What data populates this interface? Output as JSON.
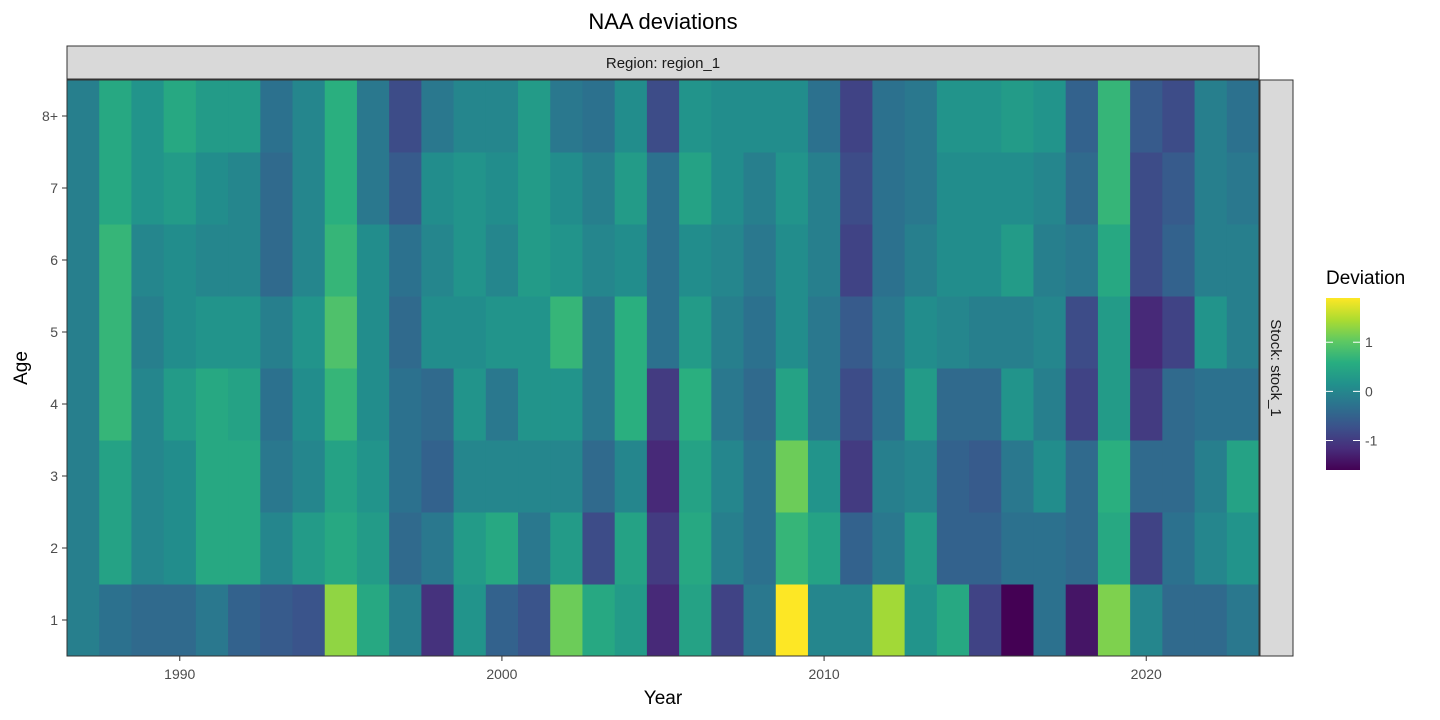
{
  "chart_data": {
    "type": "heatmap",
    "title": "NAA deviations",
    "xlabel": "Year",
    "ylabel": "Age",
    "facet_col_label": "Region: region_1",
    "facet_row_label": "Stock: stock_1",
    "x_start": 1987,
    "x_end": 2023,
    "xlim": [
      1986.5,
      2023.5
    ],
    "x_ticks": [
      1990,
      2000,
      2010,
      2020
    ],
    "x_tick_labels": [
      "1990",
      "2000",
      "2010",
      "2020"
    ],
    "ages": [
      "1",
      "2",
      "3",
      "4",
      "5",
      "6",
      "7",
      "8+"
    ],
    "legend": {
      "title": "Deviation",
      "breaks": [
        1,
        0,
        -1
      ],
      "labels": [
        "1",
        "0",
        "-1"
      ],
      "min": -1.6,
      "max": 1.9
    },
    "grid": false,
    "values": [
      [
        -0.1,
        -0.3,
        -0.4,
        -0.4,
        -0.2,
        -0.5,
        -0.6,
        -0.7,
        1.3,
        0.5,
        -0.1,
        -1.1,
        0.2,
        -0.5,
        -0.7,
        1.1,
        0.5,
        0.3,
        -1.2,
        0.4,
        -0.9,
        -0.2,
        1.9,
        0.0,
        0.0,
        1.4,
        0.2,
        0.5,
        -0.9,
        -1.6,
        -0.3,
        -1.4,
        1.2,
        0.0,
        -0.4,
        -0.4,
        -0.2
      ],
      [
        -0.1,
        0.4,
        0.0,
        0.1,
        0.5,
        0.5,
        0.0,
        0.3,
        0.5,
        0.3,
        -0.4,
        -0.2,
        0.3,
        0.5,
        -0.2,
        0.3,
        -0.8,
        0.4,
        -1.0,
        0.5,
        -0.1,
        -0.3,
        0.7,
        0.4,
        -0.5,
        -0.2,
        0.3,
        -0.5,
        -0.5,
        -0.3,
        -0.3,
        -0.4,
        0.5,
        -0.9,
        -0.3,
        0.0,
        0.2
      ],
      [
        -0.1,
        0.4,
        0.0,
        0.1,
        0.5,
        0.5,
        -0.2,
        0.0,
        0.4,
        0.2,
        -0.3,
        -0.5,
        0.0,
        0.0,
        0.0,
        0.0,
        -0.4,
        0.0,
        -1.2,
        0.4,
        0.0,
        -0.3,
        1.1,
        0.2,
        -1.0,
        -0.1,
        0.0,
        -0.5,
        -0.6,
        -0.2,
        0.1,
        -0.4,
        0.6,
        -0.4,
        -0.4,
        -0.1,
        0.4
      ],
      [
        -0.1,
        0.7,
        0.0,
        0.3,
        0.5,
        0.4,
        -0.3,
        0.1,
        0.7,
        0.1,
        -0.3,
        -0.4,
        0.2,
        -0.2,
        0.2,
        0.2,
        -0.2,
        0.6,
        -1.0,
        0.6,
        -0.2,
        -0.4,
        0.4,
        -0.2,
        -0.8,
        -0.3,
        0.3,
        -0.4,
        -0.4,
        0.2,
        -0.1,
        -0.9,
        0.3,
        -1.0,
        -0.4,
        -0.3,
        -0.3
      ],
      [
        -0.1,
        0.7,
        -0.1,
        0.1,
        0.2,
        0.2,
        -0.1,
        0.2,
        0.9,
        0.1,
        -0.4,
        0.1,
        0.1,
        0.2,
        0.2,
        0.7,
        -0.2,
        0.6,
        -0.3,
        0.3,
        -0.1,
        -0.3,
        0.1,
        -0.2,
        -0.6,
        -0.2,
        0.1,
        0.0,
        -0.1,
        -0.1,
        0.0,
        -0.8,
        0.3,
        -1.2,
        -0.9,
        0.2,
        -0.1
      ],
      [
        -0.1,
        0.7,
        0.0,
        0.1,
        0.0,
        0.0,
        -0.4,
        0.0,
        0.7,
        0.1,
        -0.3,
        0.0,
        0.2,
        0.0,
        0.3,
        0.2,
        0.0,
        0.1,
        -0.3,
        0.1,
        0.0,
        -0.2,
        0.1,
        -0.1,
        -0.9,
        -0.3,
        -0.1,
        0.1,
        0.1,
        0.3,
        -0.1,
        -0.2,
        0.5,
        -0.8,
        -0.5,
        -0.1,
        -0.1
      ],
      [
        -0.1,
        0.5,
        0.2,
        0.3,
        0.1,
        0.0,
        -0.4,
        0.0,
        0.6,
        -0.2,
        -0.6,
        0.1,
        0.2,
        0.1,
        0.3,
        0.1,
        -0.1,
        0.3,
        -0.3,
        0.4,
        0.1,
        -0.1,
        0.2,
        -0.1,
        -0.8,
        -0.3,
        -0.2,
        0.1,
        0.1,
        0.1,
        0.0,
        -0.4,
        0.7,
        -0.8,
        -0.6,
        -0.1,
        -0.2
      ],
      [
        -0.1,
        0.5,
        0.2,
        0.5,
        0.3,
        0.3,
        -0.3,
        0.0,
        0.6,
        -0.2,
        -0.8,
        -0.2,
        0.0,
        0.0,
        0.3,
        -0.2,
        -0.3,
        0.1,
        -0.8,
        0.2,
        0.1,
        0.1,
        0.1,
        -0.3,
        -0.9,
        -0.3,
        -0.2,
        0.2,
        0.2,
        0.3,
        0.2,
        -0.5,
        0.7,
        -0.6,
        -0.8,
        -0.1,
        -0.3
      ]
    ]
  }
}
